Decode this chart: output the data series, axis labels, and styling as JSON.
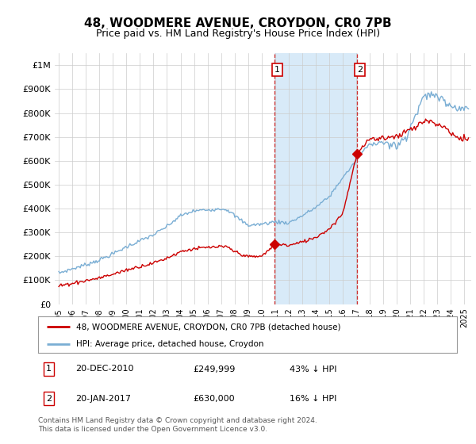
{
  "title": "48, WOODMERE AVENUE, CROYDON, CR0 7PB",
  "subtitle": "Price paid vs. HM Land Registry's House Price Index (HPI)",
  "ylabel_ticks": [
    "£0",
    "£100K",
    "£200K",
    "£300K",
    "£400K",
    "£500K",
    "£600K",
    "£700K",
    "£800K",
    "£900K",
    "£1M"
  ],
  "ytick_values": [
    0,
    100000,
    200000,
    300000,
    400000,
    500000,
    600000,
    700000,
    800000,
    900000,
    1000000
  ],
  "ylim": [
    0,
    1050000
  ],
  "xlim_start": 1994.7,
  "xlim_end": 2025.5,
  "sale1_date": 2010.97,
  "sale1_price": 249999,
  "sale2_date": 2017.05,
  "sale2_price": 630000,
  "sale1_label": "1",
  "sale2_label": "2",
  "legend_house": "48, WOODMERE AVENUE, CROYDON, CR0 7PB (detached house)",
  "legend_hpi": "HPI: Average price, detached house, Croydon",
  "table_rows": [
    {
      "num": "1",
      "date": "20-DEC-2010",
      "price": "£249,999",
      "note": "43% ↓ HPI"
    },
    {
      "num": "2",
      "date": "20-JAN-2017",
      "price": "£630,000",
      "note": "16% ↓ HPI"
    }
  ],
  "footnote1": "Contains HM Land Registry data © Crown copyright and database right 2024.",
  "footnote2": "This data is licensed under the Open Government Licence v3.0.",
  "hpi_color": "#7aaed4",
  "sale_color": "#cc0000",
  "shade_color": "#d8eaf8",
  "dashed_color": "#cc0000",
  "background_color": "#ffffff",
  "grid_color": "#cccccc",
  "title_fontsize": 11,
  "subtitle_fontsize": 9
}
